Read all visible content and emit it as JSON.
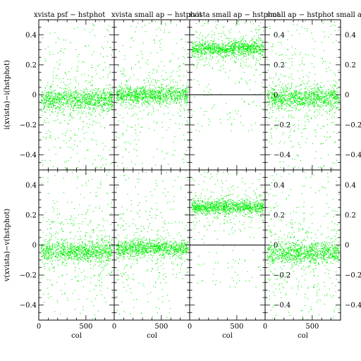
{
  "chart_data": {
    "type": "scatter",
    "grid": false,
    "marker_color": "#00ee00",
    "titles": [
      "xvista psf − hstphot",
      "xvista small ap − hstphot",
      "xvista small ap − hstphot",
      "small ap − hstphot small ap"
    ],
    "ylabels": [
      "i(xvista)−i(hstphot)",
      "v(xvista)−v(hstphot)"
    ],
    "xlabel": "col",
    "xlim": [
      0,
      800
    ],
    "ylim": [
      -0.5,
      0.5
    ],
    "xticks": [
      0,
      500
    ],
    "yticks": [
      -0.4,
      -0.2,
      0,
      0.2,
      0.4
    ],
    "ytick_labels": [
      "−0.4",
      "−0.2",
      "0",
      "0.2",
      "0.4"
    ],
    "right_ytick_labels": [
      "−0.4",
      "−0.2",
      "0",
      "0.2",
      "0.4"
    ],
    "panels": [
      {
        "row": 0,
        "col": 0,
        "center": -0.03,
        "band_halfwidth": 0.035,
        "spread": 0.16,
        "n_band": 900,
        "n_scatter": 420,
        "zero_line": false
      },
      {
        "row": 0,
        "col": 1,
        "center": 0.0,
        "band_halfwidth": 0.03,
        "spread": 0.14,
        "n_band": 900,
        "n_scatter": 380,
        "zero_line": false
      },
      {
        "row": 0,
        "col": 2,
        "center": 0.31,
        "band_halfwidth": 0.025,
        "spread": 0.09,
        "n_band": 900,
        "n_scatter": 420,
        "zero_line": true
      },
      {
        "row": 0,
        "col": 3,
        "center": -0.02,
        "band_halfwidth": 0.035,
        "spread": 0.16,
        "n_band": 900,
        "n_scatter": 420,
        "zero_line": false
      },
      {
        "row": 1,
        "col": 0,
        "center": -0.04,
        "band_halfwidth": 0.035,
        "spread": 0.15,
        "n_band": 900,
        "n_scatter": 400,
        "zero_line": false
      },
      {
        "row": 1,
        "col": 1,
        "center": -0.02,
        "band_halfwidth": 0.028,
        "spread": 0.13,
        "n_band": 900,
        "n_scatter": 360,
        "zero_line": false
      },
      {
        "row": 1,
        "col": 2,
        "center": 0.255,
        "band_halfwidth": 0.022,
        "spread": 0.08,
        "n_band": 900,
        "n_scatter": 380,
        "zero_line": true
      },
      {
        "row": 1,
        "col": 3,
        "center": -0.05,
        "band_halfwidth": 0.035,
        "spread": 0.16,
        "n_band": 900,
        "n_scatter": 420,
        "zero_line": false
      }
    ]
  }
}
